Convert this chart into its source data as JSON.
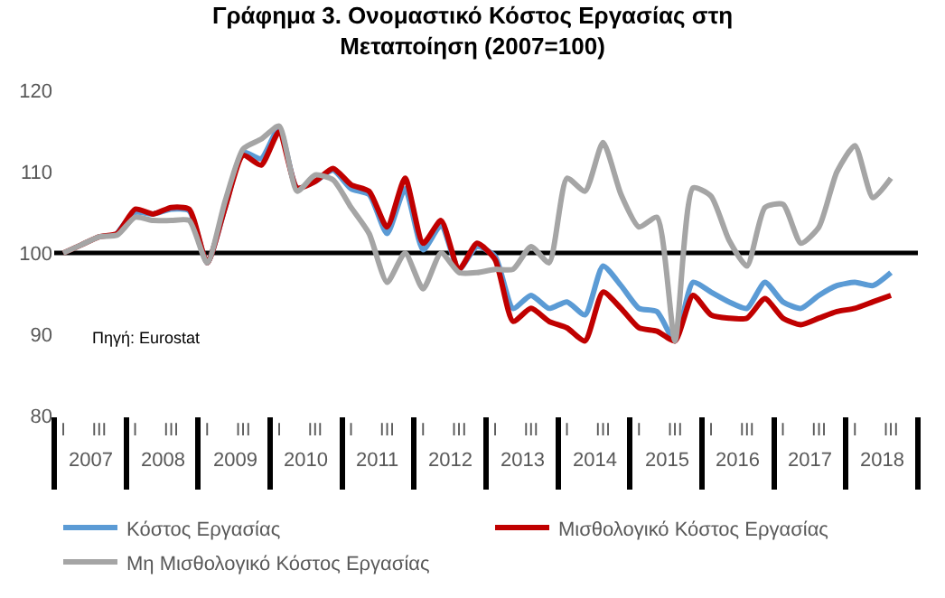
{
  "chart_data": {
    "type": "line",
    "title": "Γράφημα 3. Ονομαστικό Κόστος Εργασίας στη\nΜεταποίηση (2007=100)",
    "categories": [
      "I",
      null,
      "III",
      null,
      "I",
      null,
      "III",
      null,
      "I",
      null,
      "III",
      null,
      "I",
      null,
      "III",
      null,
      "I",
      null,
      "III",
      null,
      "I",
      null,
      "III",
      null,
      "I",
      null,
      "III",
      null,
      "I",
      null,
      "III",
      null,
      "I",
      null,
      "III",
      null,
      "I",
      null,
      "III",
      null,
      "I",
      null,
      "III",
      null,
      "I",
      null,
      "III"
    ],
    "series": [
      {
        "name": "Κόστος Εργασίας",
        "color": "#5b9bd5",
        "values": [
          null,
          null,
          null,
          102.4,
          105,
          104.8,
          105.4,
          105.2,
          98.8,
          105.6,
          112.4,
          111.6,
          115.4,
          108,
          108.8,
          110.2,
          107.9,
          107.2,
          102.4,
          107.9,
          100.4,
          103.4,
          98,
          100.8,
          99.6,
          93.2,
          94.8,
          93.2,
          94,
          92.4,
          98.4,
          96,
          93.2,
          92.8,
          89.2,
          96.4,
          95.2,
          94,
          93.2,
          96.4,
          94,
          93.2,
          94.8,
          96,
          96.4,
          96,
          97.6
        ]
      },
      {
        "name": "Μισθολογικό Κόστος Εργασίας",
        "color": "#c00000",
        "values": [
          100,
          101,
          102,
          102.4,
          105.4,
          104.8,
          105.6,
          105.4,
          98.8,
          105.6,
          112,
          110.8,
          114.9,
          108,
          108.8,
          110.4,
          108.4,
          107.6,
          103.2,
          109.2,
          101.2,
          104,
          98,
          101.2,
          99.2,
          91.6,
          93.2,
          91.6,
          90.8,
          89.2,
          95.2,
          93.2,
          90.8,
          90.4,
          89.2,
          94.8,
          92.4,
          92,
          92,
          94.4,
          92,
          91.2,
          92,
          92.8,
          93.2,
          94,
          94.8
        ]
      },
      {
        "name": "Μη Μισθολογικό Κόστος Εργασίας",
        "color": "#a5a5a5",
        "values": [
          100,
          101,
          102,
          102.2,
          104.4,
          104,
          104,
          104,
          98.8,
          106.4,
          112.8,
          114,
          115.6,
          107.6,
          109.6,
          109,
          105.6,
          102.4,
          96.4,
          100,
          95.6,
          100,
          97.6,
          97.6,
          98,
          98,
          100.8,
          98.8,
          109.2,
          107.6,
          113.6,
          107.2,
          103.2,
          104.4,
          89.2,
          108,
          107,
          101.6,
          98.4,
          105.6,
          106,
          101.2,
          103.2,
          110,
          113.2,
          106.8,
          109.2
        ]
      }
    ],
    "ylim": [
      80,
      120
    ],
    "yticks": [
      80,
      90,
      100,
      110,
      120
    ],
    "ref_lines": [
      {
        "axis": "y",
        "value": 100,
        "color": "#000000"
      }
    ],
    "annotations": [
      "Πηγή: Eurostat",
      "2007",
      "2008",
      "2009",
      "2010",
      "2011",
      "2012",
      "2013",
      "2014",
      "2015",
      "2016",
      "2017",
      "2018"
    ],
    "grid": false,
    "legend": "bottom",
    "marker": "none",
    "line_style": "solid"
  }
}
